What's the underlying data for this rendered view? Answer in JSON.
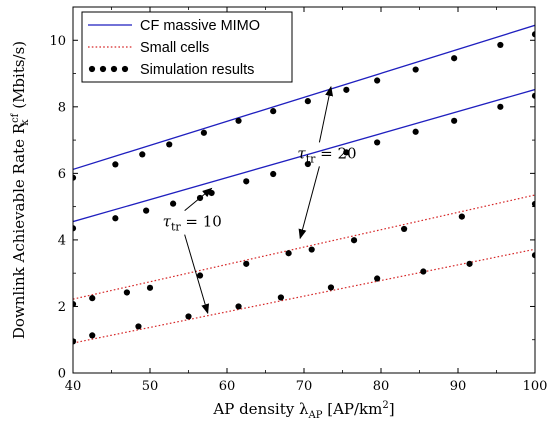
{
  "chart_data": {
    "type": "line",
    "xlabel": "AP density λ_AP [AP/km²]",
    "ylabel": "Downlink Achievable Rate R_k^cf (Mbits/s)",
    "xlabel_parts": {
      "main": "AP density λ",
      "sub": "AP",
      "unit_open": " [AP/km",
      "sup": "2",
      "unit_close": "]"
    },
    "ylabel_parts": {
      "main": "Downlink Achievable Rate R",
      "sub": "k",
      "sup": "cf",
      "unit": " (Mbits/s)"
    },
    "xlim": [
      40,
      100
    ],
    "ylim": [
      0,
      11
    ],
    "x_ticks": [
      40,
      50,
      60,
      70,
      80,
      90,
      100
    ],
    "y_ticks": [
      0,
      2,
      4,
      6,
      8,
      10
    ],
    "grid": false,
    "legend": {
      "position": "top-left",
      "entries": [
        {
          "label": "CF massive MIMO",
          "style": "solid",
          "color": "#1f1fbf"
        },
        {
          "label": "Small cells",
          "style": "dotted",
          "color": "#d62728"
        },
        {
          "label": "Simulation results",
          "style": "markers",
          "color": "#000000"
        }
      ]
    },
    "series": [
      {
        "kind": "cf",
        "tau": 20,
        "style": "solid",
        "color": "#1f1fbf",
        "x": [
          40,
          100
        ],
        "y": [
          6.12,
          10.45
        ]
      },
      {
        "kind": "cf",
        "tau": 10,
        "style": "solid",
        "color": "#1f1fbf",
        "x": [
          40,
          100
        ],
        "y": [
          4.55,
          8.52
        ]
      },
      {
        "kind": "sc",
        "tau": 20,
        "style": "dotted",
        "color": "#d62728",
        "x": [
          40,
          100
        ],
        "y": [
          2.22,
          5.35
        ]
      },
      {
        "kind": "sc",
        "tau": 10,
        "style": "dotted",
        "color": "#d62728",
        "x": [
          40,
          100
        ],
        "y": [
          0.9,
          3.72
        ]
      },
      {
        "kind": "sim",
        "style": "markers",
        "color": "#000000",
        "x": [
          40,
          45.5,
          49,
          52.5,
          57,
          61.5,
          66,
          70.5,
          75.5,
          79.5,
          84.5,
          89.5,
          95.5,
          100
        ],
        "y": [
          5.87,
          6.27,
          6.57,
          6.87,
          7.22,
          7.58,
          7.87,
          8.17,
          8.51,
          8.79,
          9.12,
          9.46,
          9.86,
          10.18
        ]
      },
      {
        "kind": "sim",
        "style": "markers",
        "color": "#000000",
        "x": [
          40,
          45.5,
          49.5,
          53,
          56.5,
          58,
          62.5,
          66,
          70.5,
          75.5,
          79.5,
          84.5,
          89.5,
          95.5,
          100
        ],
        "y": [
          4.35,
          4.65,
          4.88,
          5.09,
          5.26,
          5.41,
          5.76,
          5.98,
          6.28,
          6.63,
          6.93,
          7.25,
          7.58,
          8.0,
          8.33
        ]
      },
      {
        "kind": "sim",
        "style": "markers",
        "color": "#000000",
        "x": [
          40,
          42.5,
          47,
          50,
          56.5,
          62.5,
          68,
          71,
          76.5,
          83,
          90.5,
          100
        ],
        "y": [
          2.07,
          2.25,
          2.42,
          2.56,
          2.93,
          3.28,
          3.6,
          3.71,
          3.99,
          4.33,
          4.7,
          5.08
        ]
      },
      {
        "kind": "sim",
        "style": "markers",
        "color": "#000000",
        "x": [
          40,
          42.5,
          48.5,
          55,
          61.5,
          67,
          73.5,
          79.5,
          85.5,
          91.5,
          100
        ],
        "y": [
          0.95,
          1.13,
          1.4,
          1.7,
          2.0,
          2.27,
          2.57,
          2.84,
          3.05,
          3.28,
          3.54
        ]
      }
    ],
    "annotations": [
      {
        "text_main": "τ",
        "text_sub": "tr",
        "text_rest": " = 20",
        "at": [
          72,
          6.45
        ],
        "arrows_to": [
          [
            73.5,
            8.6
          ],
          [
            69.5,
            4.05
          ]
        ]
      },
      {
        "text_main": "τ",
        "text_sub": "tr",
        "text_rest": " = 10",
        "at": [
          54.5,
          4.4
        ],
        "arrows_to": [
          [
            58,
            5.55
          ],
          [
            57.5,
            1.8
          ]
        ]
      }
    ]
  }
}
